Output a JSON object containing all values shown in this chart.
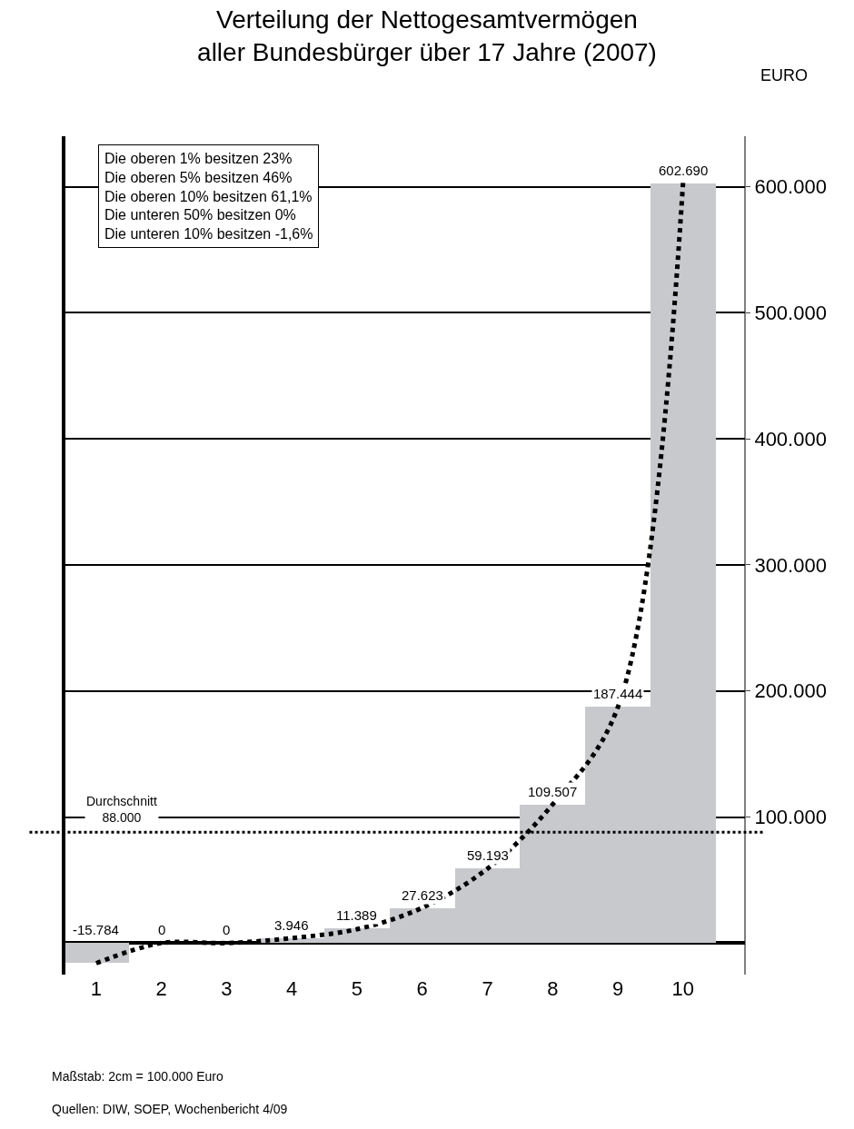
{
  "chart_data": {
    "type": "bar",
    "title": "Verteilung der Nettogesamtvermögen\naller Bundesbürger über 17 Jahre (2007)",
    "ylabel": "EURO",
    "categories": [
      "1",
      "2",
      "3",
      "4",
      "5",
      "6",
      "7",
      "8",
      "9",
      "10"
    ],
    "series": [
      {
        "color": "#c8c9cd",
        "values": [
          -15784,
          0,
          0,
          3946,
          11389,
          27623,
          59193,
          109507,
          187444,
          602690
        ],
        "value_labels": [
          "-15.784",
          "0",
          "0",
          "3.946",
          "11.389",
          "27.623",
          "59.193",
          "109.507",
          "187.444",
          "602.690"
        ]
      },
      {
        "type": "line",
        "color": "#000000",
        "line_style": "dotted",
        "marker": "none",
        "values": [
          -16000,
          0,
          0,
          4000,
          11000,
          28000,
          59000,
          110000,
          187000,
          603000
        ]
      }
    ],
    "ylim": [
      -25000,
      640000
    ],
    "yticks": [
      {
        "value": 100000,
        "label": "100.000"
      },
      {
        "value": 200000,
        "label": "200.000"
      },
      {
        "value": 300000,
        "label": "300.000"
      },
      {
        "value": 400000,
        "label": "400.000"
      },
      {
        "value": 500000,
        "label": "500.000"
      },
      {
        "value": 600000,
        "label": "600.000"
      }
    ],
    "grid": "y",
    "ref_lines": [
      {
        "axis": "y",
        "value": 88000,
        "label": "Durchschnitt\n88.000",
        "color": "#000000",
        "line_style": "dotted"
      }
    ],
    "annotations": [
      "Die oberen 1% besitzen 23%",
      "Die oberen 5% besitzen 46%",
      "Die oberen 10% besitzen 61,1%",
      "Die unteren 50% besitzen 0%",
      "Die unteren 10% besitzen -1,6%",
      "Maßstab: 2cm = 100.000 Euro",
      "Quellen: DIW, SOEP, Wochenbericht 4/09"
    ]
  }
}
